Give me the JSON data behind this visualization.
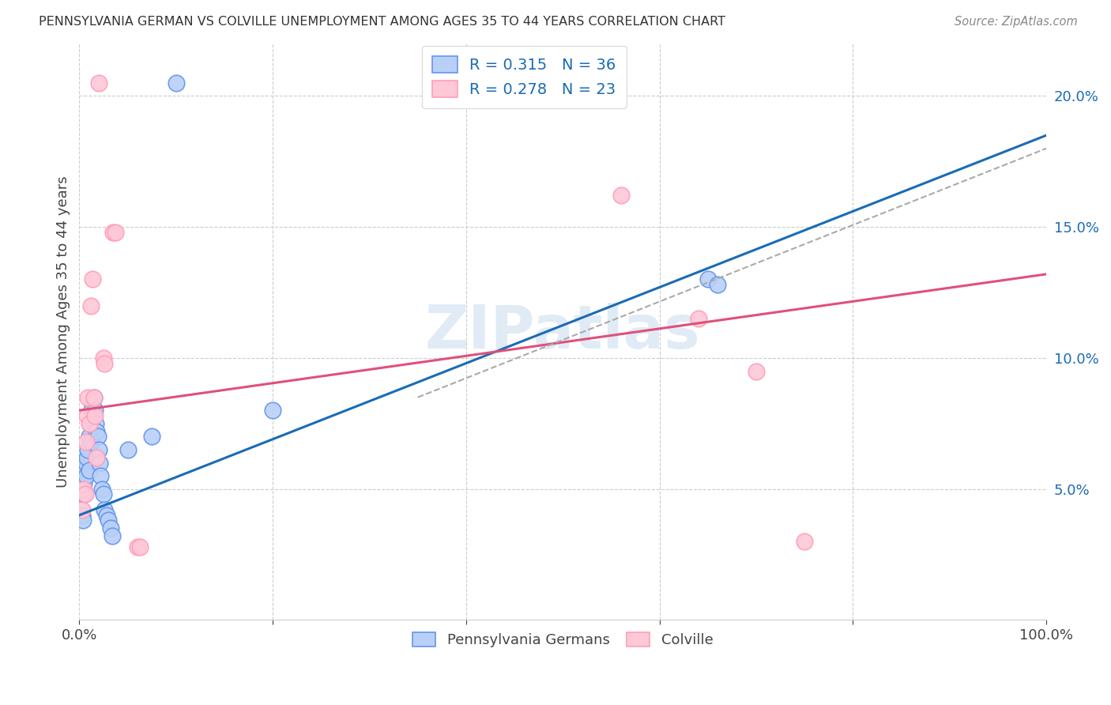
{
  "title": "PENNSYLVANIA GERMAN VS COLVILLE UNEMPLOYMENT AMONG AGES 35 TO 44 YEARS CORRELATION CHART",
  "source": "Source: ZipAtlas.com",
  "ylabel": "Unemployment Among Ages 35 to 44 years",
  "xlim": [
    0,
    1.0
  ],
  "ylim": [
    0,
    0.22
  ],
  "xtick_positions": [
    0.0,
    0.2,
    0.4,
    0.6,
    0.8,
    1.0
  ],
  "xticklabels": [
    "0.0%",
    "",
    "",
    "",
    "",
    "100.0%"
  ],
  "yticks_right": [
    0.05,
    0.1,
    0.15,
    0.2
  ],
  "ytick_labels_right": [
    "5.0%",
    "10.0%",
    "15.0%",
    "20.0%"
  ],
  "blue_R": "0.315",
  "blue_N": "36",
  "pink_R": "0.278",
  "pink_N": "23",
  "blue_edge_color": "#6495ED",
  "pink_edge_color": "#FF9EB5",
  "blue_fill_color": "#b8d0f8",
  "pink_fill_color": "#ffc8d8",
  "blue_line_color": "#1a6bb5",
  "pink_line_color": "#e0507a",
  "dashed_line_color": "#aaaaaa",
  "watermark": "ZIPatlas",
  "blue_scatter": [
    [
      0.003,
      0.04
    ],
    [
      0.004,
      0.038
    ],
    [
      0.005,
      0.048
    ],
    [
      0.005,
      0.052
    ],
    [
      0.006,
      0.058
    ],
    [
      0.007,
      0.06
    ],
    [
      0.007,
      0.055
    ],
    [
      0.008,
      0.062
    ],
    [
      0.009,
      0.065
    ],
    [
      0.01,
      0.07
    ],
    [
      0.01,
      0.057
    ],
    [
      0.011,
      0.075
    ],
    [
      0.012,
      0.068
    ],
    [
      0.013,
      0.08
    ],
    [
      0.014,
      0.082
    ],
    [
      0.015,
      0.085
    ],
    [
      0.016,
      0.08
    ],
    [
      0.017,
      0.075
    ],
    [
      0.018,
      0.072
    ],
    [
      0.019,
      0.07
    ],
    [
      0.02,
      0.065
    ],
    [
      0.021,
      0.06
    ],
    [
      0.022,
      0.055
    ],
    [
      0.023,
      0.05
    ],
    [
      0.025,
      0.048
    ],
    [
      0.026,
      0.042
    ],
    [
      0.028,
      0.04
    ],
    [
      0.03,
      0.038
    ],
    [
      0.032,
      0.035
    ],
    [
      0.034,
      0.032
    ],
    [
      0.05,
      0.065
    ],
    [
      0.075,
      0.07
    ],
    [
      0.1,
      0.205
    ],
    [
      0.2,
      0.08
    ],
    [
      0.65,
      0.13
    ],
    [
      0.66,
      0.128
    ]
  ],
  "pink_scatter": [
    [
      0.003,
      0.042
    ],
    [
      0.005,
      0.05
    ],
    [
      0.006,
      0.048
    ],
    [
      0.007,
      0.068
    ],
    [
      0.008,
      0.078
    ],
    [
      0.009,
      0.085
    ],
    [
      0.01,
      0.075
    ],
    [
      0.012,
      0.12
    ],
    [
      0.014,
      0.13
    ],
    [
      0.015,
      0.085
    ],
    [
      0.016,
      0.078
    ],
    [
      0.018,
      0.062
    ],
    [
      0.025,
      0.1
    ],
    [
      0.026,
      0.098
    ],
    [
      0.035,
      0.148
    ],
    [
      0.037,
      0.148
    ],
    [
      0.06,
      0.028
    ],
    [
      0.063,
      0.028
    ],
    [
      0.02,
      0.205
    ],
    [
      0.56,
      0.162
    ],
    [
      0.64,
      0.115
    ],
    [
      0.7,
      0.095
    ],
    [
      0.75,
      0.03
    ]
  ],
  "blue_trend": [
    0.0,
    1.0,
    0.04,
    0.185
  ],
  "pink_trend": [
    0.0,
    1.0,
    0.08,
    0.132
  ],
  "dashed_trend": [
    0.35,
    1.0,
    0.085,
    0.18
  ]
}
